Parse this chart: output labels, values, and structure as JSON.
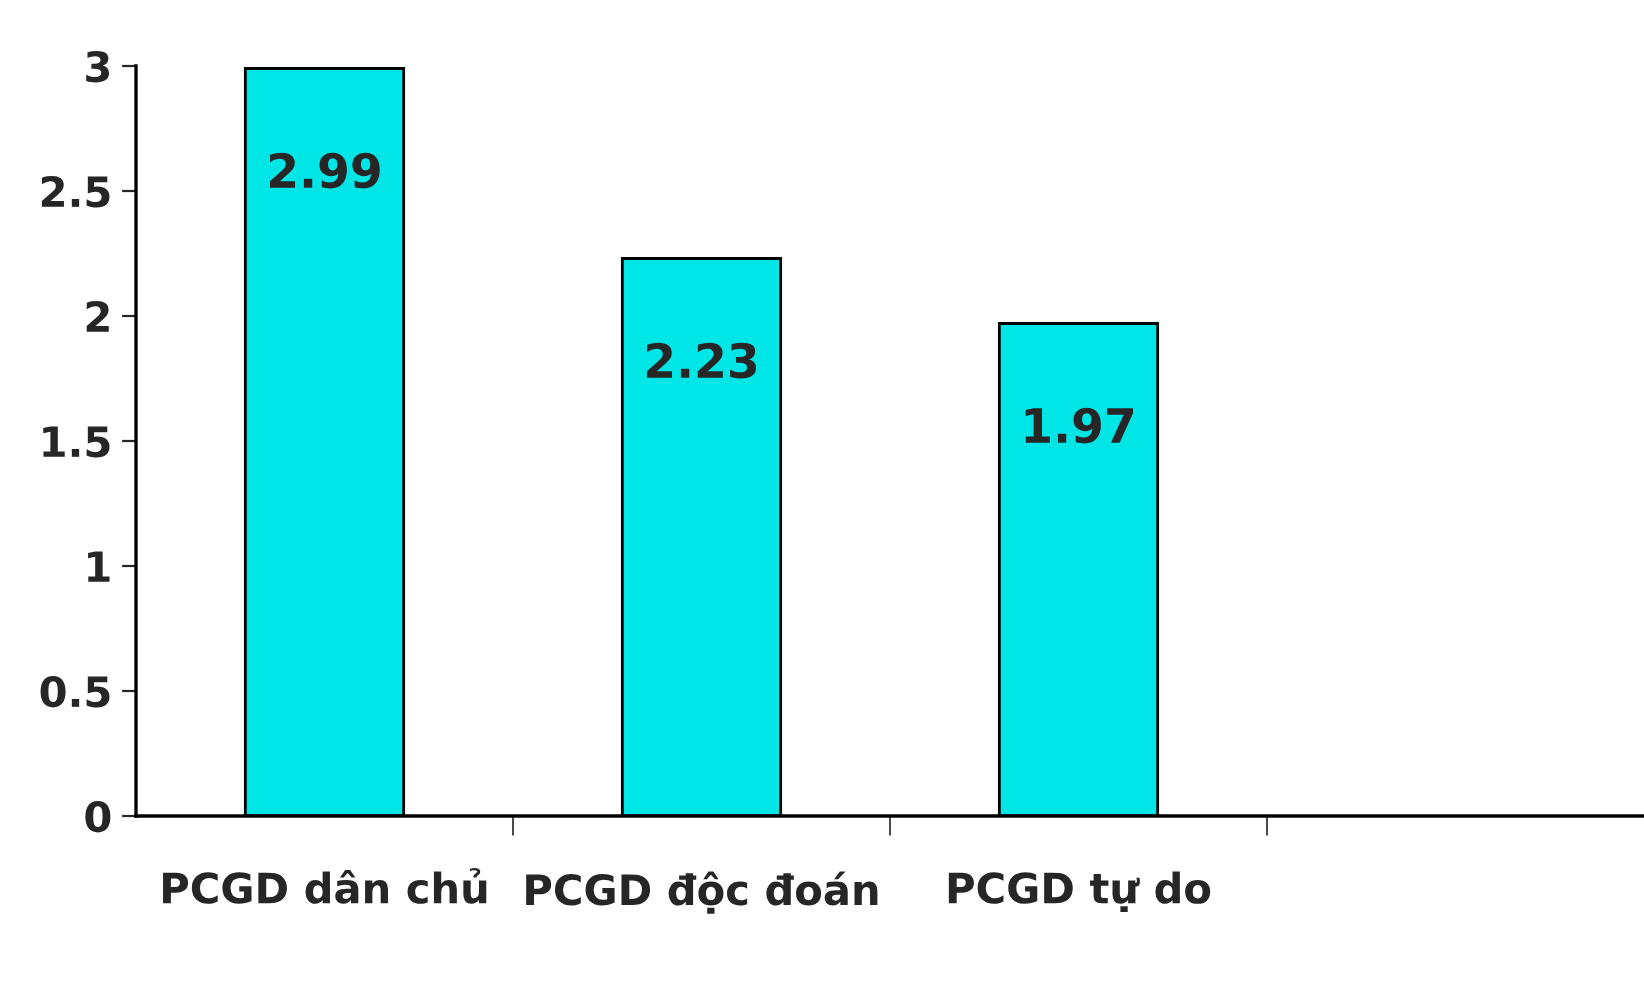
{
  "chart_data": {
    "type": "bar",
    "categories": [
      "PCGD dân chủ",
      "PCGD độc đoán",
      "PCGD tự do",
      null
    ],
    "values": [
      2.99,
      2.23,
      1.97,
      null
    ],
    "color": "#00e5e5",
    "ylim": [
      0,
      3
    ],
    "yticks": [
      0,
      0.5,
      1,
      1.5,
      2,
      2.5,
      3
    ],
    "data_labels": true,
    "grid": false,
    "legend": false
  }
}
